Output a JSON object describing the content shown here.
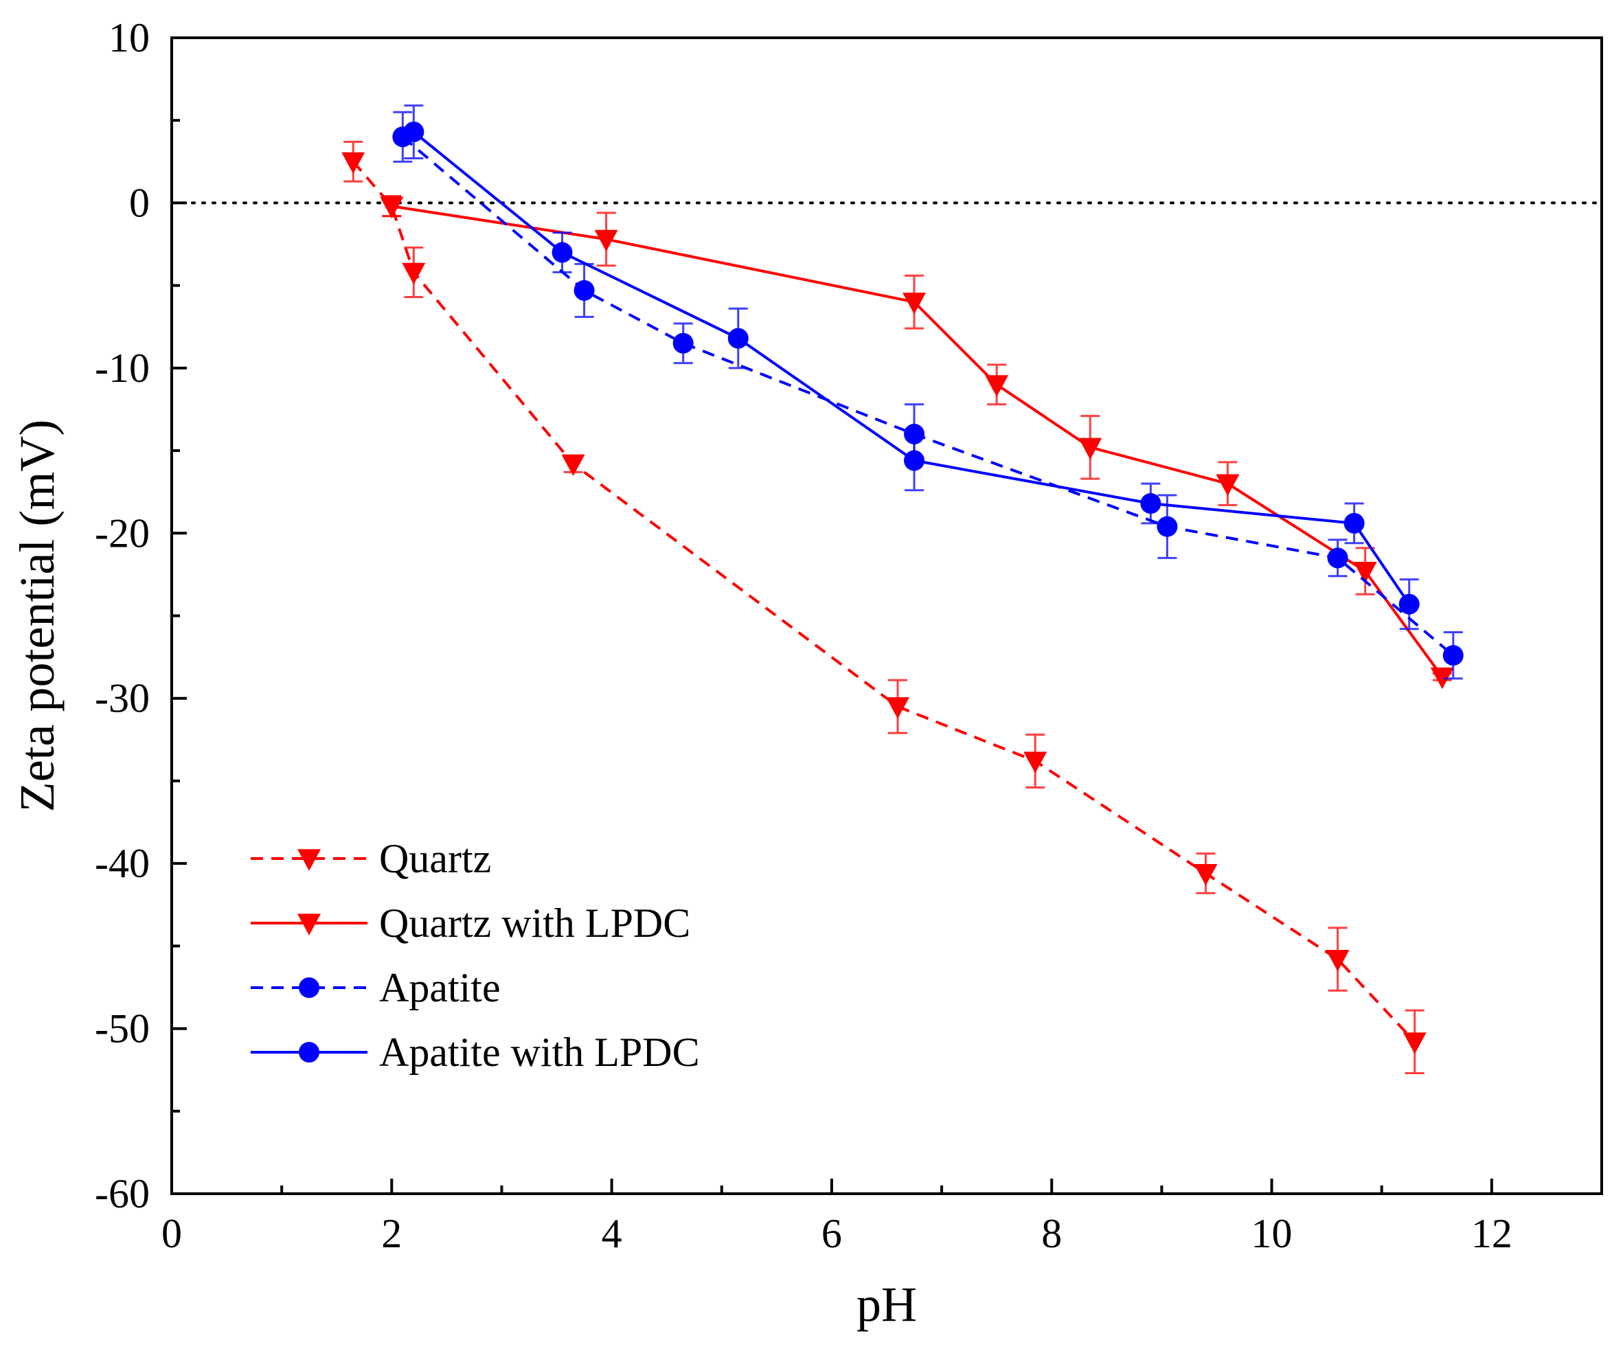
{
  "chart_data": {
    "type": "line",
    "xlabel": "pH",
    "ylabel": "Zeta potential (mV)",
    "xlim": [
      0,
      13
    ],
    "ylim": [
      -60,
      10
    ],
    "x_ticks": [
      "0",
      "2",
      "4",
      "6",
      "8",
      "10",
      "12"
    ],
    "y_ticks": [
      "10",
      "0",
      "-10",
      "-20",
      "-30",
      "-40",
      "-50",
      "-60"
    ],
    "reference_line": {
      "y": 0,
      "style": "dotted"
    },
    "legend_position": "bottom-left",
    "series": [
      {
        "name": "Quartz",
        "color": "#ff0000",
        "line": "dashed",
        "marker": "triangle-down",
        "points": [
          {
            "x": 1.65,
            "y": 2.5,
            "err": 1.2
          },
          {
            "x": 2.0,
            "y": -0.2,
            "err": 0.6
          },
          {
            "x": 2.2,
            "y": -4.2,
            "err": 1.5
          },
          {
            "x": 3.65,
            "y": -15.8,
            "err": 0.5
          },
          {
            "x": 6.6,
            "y": -30.5,
            "err": 1.6
          },
          {
            "x": 7.85,
            "y": -33.8,
            "err": 1.6
          },
          {
            "x": 9.4,
            "y": -40.6,
            "err": 1.2
          },
          {
            "x": 10.6,
            "y": -45.8,
            "err": 1.9
          },
          {
            "x": 11.3,
            "y": -50.8,
            "err": 1.9
          }
        ]
      },
      {
        "name": "Quartz with LPDC",
        "color": "#ff0000",
        "line": "solid",
        "marker": "triangle-down",
        "points": [
          {
            "x": 2.0,
            "y": -0.2,
            "err": 0.6
          },
          {
            "x": 3.95,
            "y": -2.2,
            "err": 1.6
          },
          {
            "x": 6.75,
            "y": -6.0,
            "err": 1.6
          },
          {
            "x": 7.5,
            "y": -11.0,
            "err": 1.2
          },
          {
            "x": 8.35,
            "y": -14.8,
            "err": 1.9
          },
          {
            "x": 9.6,
            "y": -17.0,
            "err": 1.3
          },
          {
            "x": 10.85,
            "y": -22.3,
            "err": 1.4
          },
          {
            "x": 11.55,
            "y": -28.7,
            "err": 0.2
          }
        ]
      },
      {
        "name": "Apatite",
        "color": "#0000ff",
        "line": "dashed",
        "marker": "circle",
        "points": [
          {
            "x": 2.1,
            "y": 4.0,
            "err": 1.5
          },
          {
            "x": 3.75,
            "y": -5.3,
            "err": 1.6
          },
          {
            "x": 4.65,
            "y": -8.5,
            "err": 1.2
          },
          {
            "x": 6.75,
            "y": -14.0,
            "err": 1.8
          },
          {
            "x": 9.05,
            "y": -19.6,
            "err": 1.9
          },
          {
            "x": 10.6,
            "y": -21.5,
            "err": 1.1
          },
          {
            "x": 11.65,
            "y": -27.4,
            "err": 1.4
          }
        ]
      },
      {
        "name": "Apatite with LPDC",
        "color": "#0000ff",
        "line": "solid",
        "marker": "circle",
        "points": [
          {
            "x": 2.2,
            "y": 4.3,
            "err": 1.6
          },
          {
            "x": 3.55,
            "y": -3.0,
            "err": 1.2
          },
          {
            "x": 5.15,
            "y": -8.2,
            "err": 1.8
          },
          {
            "x": 6.75,
            "y": -15.6,
            "err": 1.8
          },
          {
            "x": 8.9,
            "y": -18.2,
            "err": 1.2
          },
          {
            "x": 10.75,
            "y": -19.4,
            "err": 1.2
          },
          {
            "x": 11.25,
            "y": -24.3,
            "err": 1.5
          }
        ]
      }
    ]
  }
}
